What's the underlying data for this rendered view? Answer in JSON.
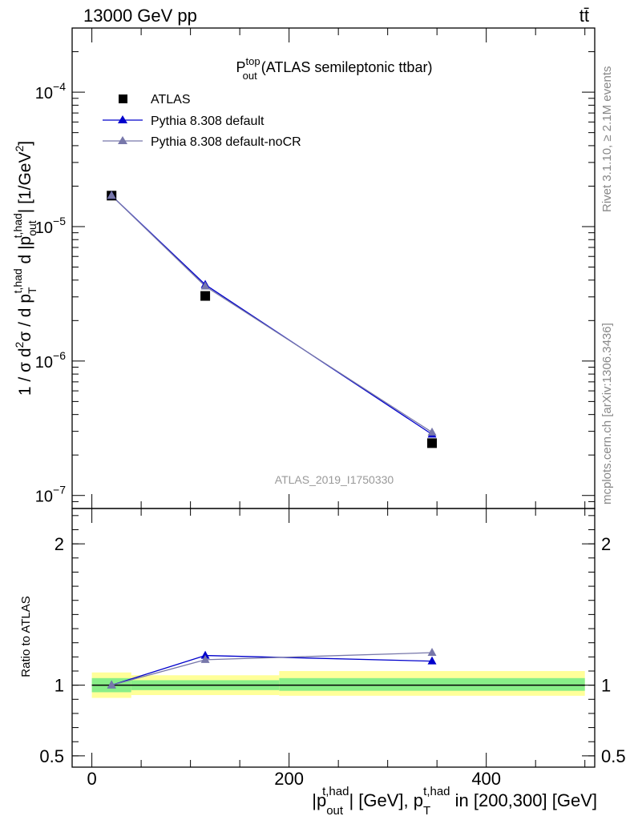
{
  "header": {
    "energy": "13000 GeV pp",
    "process": "tt̄"
  },
  "side": {
    "rivet": "Rivet 3.1.10, ≥ 2.1M events",
    "mcplots": "mcplots.cern.ch [arXiv:1306.3436]"
  },
  "title": {
    "main": "P",
    "sup": "top",
    "sub": "out",
    "rest": " (ATLAS semileptonic ttbar)"
  },
  "watermark": "ATLAS_2019_I1750330",
  "ylabel": {
    "p1": "1 / σ d",
    "p1sup": "2",
    "p2": "σ / d p",
    "p2sub": "T",
    "p2sup": "t,had",
    "p3": " d |p",
    "p3sub": "out",
    "p3sup": "t,had",
    "p4": "| [1/GeV",
    "p4sup": "2",
    "p5": "]"
  },
  "xlabel": {
    "p1": "|p",
    "p1sub": "out",
    "p1sup": "t,had",
    "p2": "| [GeV], p",
    "p2sub": "T",
    "p2sup": "t,had",
    "p3": " in [200,300] [GeV]"
  },
  "ratio_label": "Ratio to ATLAS",
  "colors": {
    "atlas": "#000000",
    "default": "#0000cc",
    "nocr": "#7777aa",
    "band_inner": "#88ee88",
    "band_outer": "#ffff99"
  },
  "chart_data": [
    {
      "type": "scatter",
      "panel": "main",
      "yscale": "log",
      "xlim": [
        -20,
        510
      ],
      "ylim": [
        8e-08,
        0.0003
      ],
      "yticks": [
        {
          "value": 1e-07,
          "base": "10",
          "exp": "−7"
        },
        {
          "value": 1e-06,
          "base": "10",
          "exp": "−6"
        },
        {
          "value": 1e-05,
          "base": "10",
          "exp": "−5"
        },
        {
          "value": 0.0001,
          "base": "10",
          "exp": "−4"
        }
      ],
      "legend_position": "top-left",
      "series": [
        {
          "name": "ATLAS",
          "marker": "square",
          "x": [
            20,
            115,
            345
          ],
          "y": [
            1.7e-05,
            3.05e-06,
            2.45e-07
          ],
          "bins": [
            [
              0,
              40
            ],
            [
              40,
              190
            ],
            [
              190,
              500
            ]
          ]
        },
        {
          "name": "Pythia 8.308 default",
          "marker": "triangle",
          "x": [
            20,
            115,
            345
          ],
          "y": [
            1.7e-05,
            3.7e-06,
            2.85e-07
          ]
        },
        {
          "name": "Pythia 8.308 default-noCR",
          "marker": "triangle",
          "x": [
            20,
            115,
            345
          ],
          "y": [
            1.7e-05,
            3.6e-06,
            2.95e-07
          ]
        }
      ]
    },
    {
      "type": "line",
      "panel": "ratio",
      "xlim": [
        -20,
        510
      ],
      "ylim": [
        0.42,
        2.25
      ],
      "xticks": [
        {
          "value": 0,
          "label": "0"
        },
        {
          "value": 200,
          "label": "200"
        },
        {
          "value": 400,
          "label": "400"
        }
      ],
      "yticks": [
        {
          "value": 0.5,
          "label": "0.5"
        },
        {
          "value": 1,
          "label": "1"
        },
        {
          "value": 2,
          "label": "2"
        }
      ],
      "bands": [
        {
          "x0": 0,
          "x1": 40,
          "inner": [
            0.95,
            1.05
          ],
          "outer": [
            0.91,
            1.09
          ]
        },
        {
          "x0": 40,
          "x1": 190,
          "inner": [
            0.965,
            1.035
          ],
          "outer": [
            0.93,
            1.07
          ]
        },
        {
          "x0": 190,
          "x1": 500,
          "inner": [
            0.96,
            1.05
          ],
          "outer": [
            0.925,
            1.1
          ]
        }
      ],
      "series": [
        {
          "name": "Pythia 8.308 default",
          "x": [
            20,
            115,
            345
          ],
          "y": [
            1.0,
            1.21,
            1.17
          ]
        },
        {
          "name": "Pythia 8.308 default-noCR",
          "x": [
            20,
            115,
            345
          ],
          "y": [
            1.0,
            1.18,
            1.23
          ]
        }
      ]
    }
  ]
}
